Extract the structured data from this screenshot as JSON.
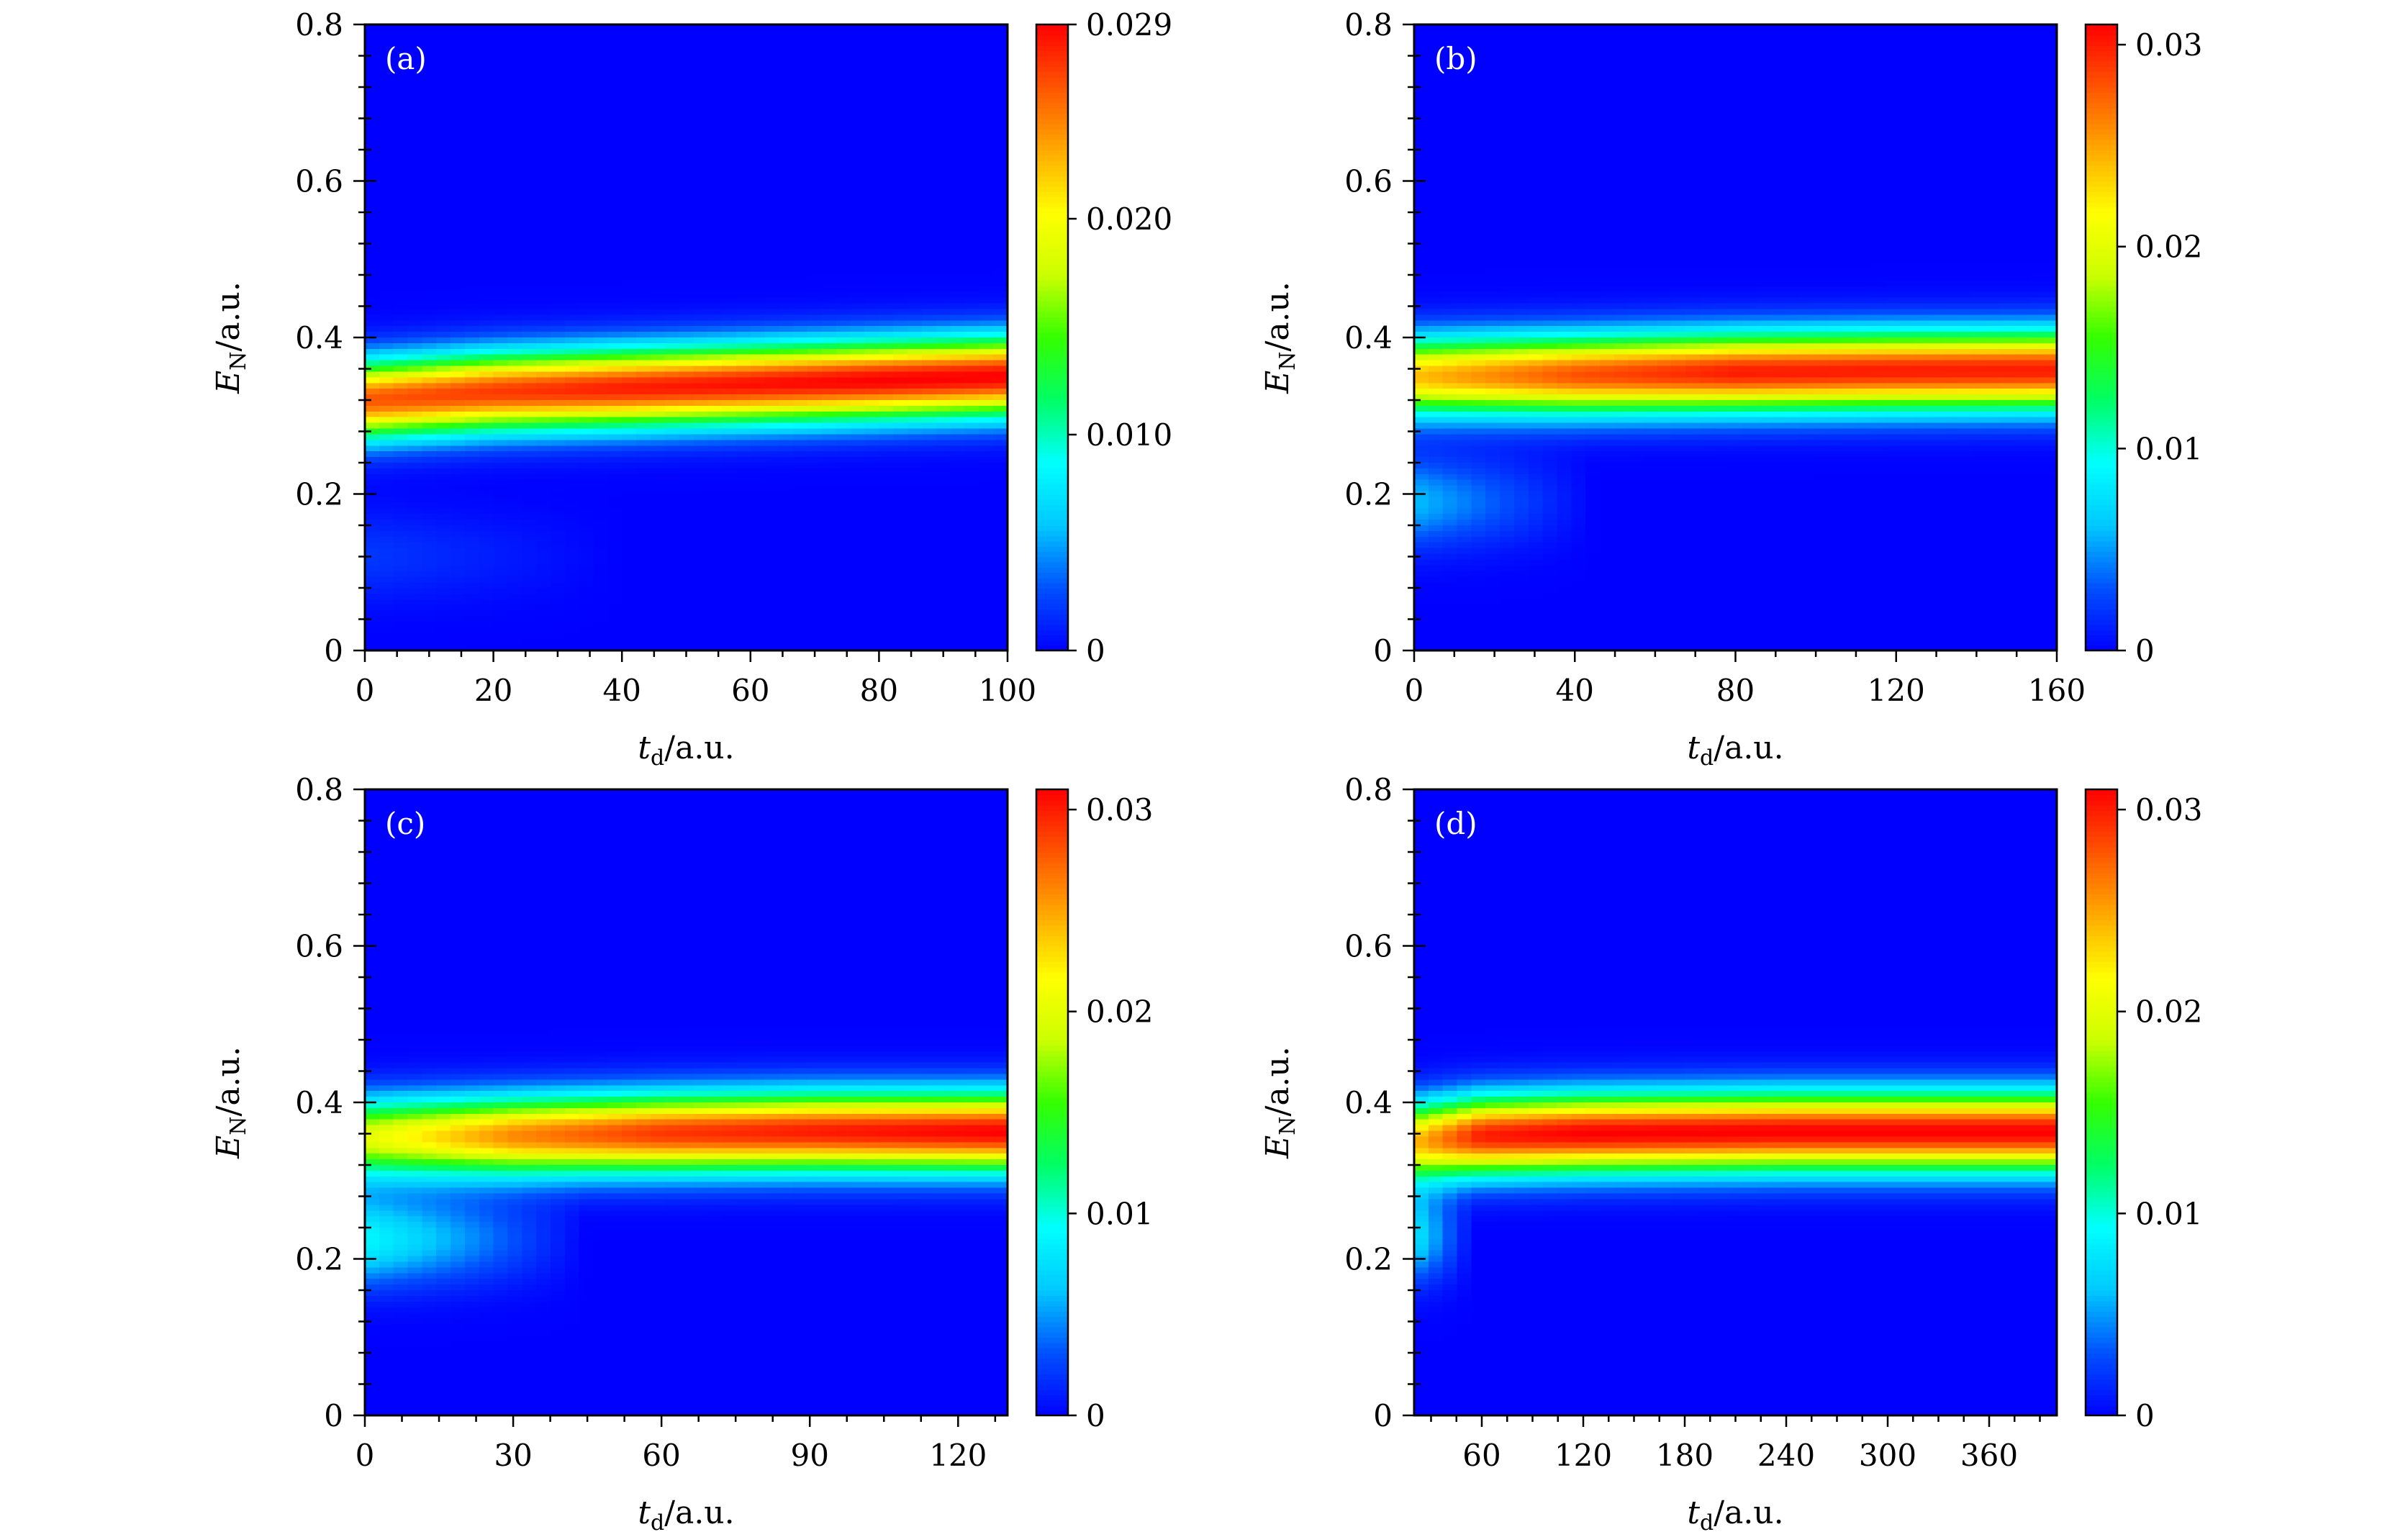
{
  "colorscale": [
    "#0000ff",
    "#0050ff",
    "#00c8ff",
    "#00ffff",
    "#00ff66",
    "#33ff00",
    "#ccff00",
    "#ffff00",
    "#ffaa00",
    "#ff5500",
    "#ff0000"
  ],
  "chart_data": [
    {
      "type": "heatmap",
      "label": "(a)",
      "xlabel": {
        "main": "t",
        "sub": "d",
        "unit": "/a.u."
      },
      "ylabel": {
        "main": "E",
        "sub": "N",
        "unit": "/a.u."
      },
      "xlim": [
        0,
        100
      ],
      "ylim": [
        0,
        0.8
      ],
      "xticks": [
        0,
        20,
        40,
        60,
        80,
        100
      ],
      "xticklabels": [
        "0",
        "20",
        "40",
        "60",
        "80",
        "100"
      ],
      "yticks": [
        0,
        0.2,
        0.4,
        0.6,
        0.8
      ],
      "yticklabels": [
        "0",
        "0.2",
        "0.4",
        "0.6",
        "0.8"
      ],
      "colorbar": {
        "min": 0,
        "max": 0.029,
        "ticks": [
          0,
          0.01,
          0.02,
          0.029
        ],
        "ticklabels": [
          "0",
          "0.010",
          "0.020",
          "0.029"
        ]
      },
      "band": {
        "x": [
          0,
          20,
          40,
          60,
          80,
          100
        ],
        "center": [
          0.32,
          0.33,
          0.335,
          0.34,
          0.345,
          0.35
        ],
        "peak": [
          0.026,
          0.027,
          0.028,
          0.0285,
          0.029,
          0.029
        ]
      },
      "secondary": {
        "x_end": 40,
        "center": 0.12,
        "peak": 0.002
      }
    },
    {
      "type": "heatmap",
      "label": "(b)",
      "xlabel": {
        "main": "t",
        "sub": "d",
        "unit": "/a.u."
      },
      "ylabel": {
        "main": "E",
        "sub": "N",
        "unit": "/a.u."
      },
      "xlim": [
        0,
        160
      ],
      "ylim": [
        0,
        0.8
      ],
      "xticks": [
        0,
        40,
        80,
        120,
        160
      ],
      "xticklabels": [
        "0",
        "40",
        "80",
        "120",
        "160"
      ],
      "yticks": [
        0,
        0.2,
        0.4,
        0.6,
        0.8
      ],
      "yticklabels": [
        "0",
        "0.2",
        "0.4",
        "0.6",
        "0.8"
      ],
      "colorbar": {
        "min": 0,
        "max": 0.031,
        "ticks": [
          0,
          0.01,
          0.02,
          0.03
        ],
        "ticklabels": [
          "0",
          "0.01",
          "0.02",
          "0.03"
        ]
      },
      "band": {
        "x": [
          0,
          40,
          80,
          120,
          160
        ],
        "center": [
          0.35,
          0.352,
          0.355,
          0.357,
          0.358
        ],
        "peak": [
          0.024,
          0.028,
          0.03,
          0.03,
          0.03
        ]
      },
      "secondary": {
        "x_end": 45,
        "center": 0.19,
        "peak": 0.006
      }
    },
    {
      "type": "heatmap",
      "label": "(c)",
      "xlabel": {
        "main": "t",
        "sub": "d",
        "unit": "/a.u."
      },
      "ylabel": {
        "main": "E",
        "sub": "N",
        "unit": "/a.u."
      },
      "xlim": [
        0,
        130
      ],
      "ylim": [
        0,
        0.8
      ],
      "xticks": [
        0,
        30,
        60,
        90,
        120
      ],
      "xticklabels": [
        "0",
        "30",
        "60",
        "90",
        "120"
      ],
      "yticks": [
        0,
        0.2,
        0.4,
        0.6,
        0.8
      ],
      "yticklabels": [
        "0",
        "0.2",
        "0.4",
        "0.6",
        "0.8"
      ],
      "colorbar": {
        "min": 0,
        "max": 0.031,
        "ticks": [
          0,
          0.01,
          0.02,
          0.03
        ],
        "ticklabels": [
          "0",
          "0.01",
          "0.02",
          "0.03"
        ]
      },
      "band": {
        "x": [
          0,
          30,
          60,
          90,
          130
        ],
        "center": [
          0.355,
          0.357,
          0.36,
          0.362,
          0.362
        ],
        "peak": [
          0.02,
          0.026,
          0.029,
          0.03,
          0.031
        ]
      },
      "secondary": {
        "x_end": 45,
        "center": 0.225,
        "peak": 0.009
      }
    },
    {
      "type": "heatmap",
      "label": "(d)",
      "xlabel": {
        "main": "t",
        "sub": "d",
        "unit": "/a.u."
      },
      "ylabel": {
        "main": "E",
        "sub": "N",
        "unit": "/a.u."
      },
      "xlim": [
        20,
        400
      ],
      "ylim": [
        0,
        0.8
      ],
      "xticks": [
        60,
        120,
        180,
        240,
        300,
        360
      ],
      "xticklabels": [
        "60",
        "120",
        "180",
        "240",
        "300",
        "360"
      ],
      "yticks": [
        0,
        0.2,
        0.4,
        0.6,
        0.8
      ],
      "yticklabels": [
        "0",
        "0.2",
        "0.4",
        "0.6",
        "0.8"
      ],
      "colorbar": {
        "min": 0,
        "max": 0.031,
        "ticks": [
          0,
          0.01,
          0.02,
          0.03
        ],
        "ticklabels": [
          "0",
          "0.01",
          "0.02",
          "0.03"
        ]
      },
      "band": {
        "x": [
          20,
          60,
          120,
          240,
          400
        ],
        "center": [
          0.35,
          0.357,
          0.36,
          0.362,
          0.362
        ],
        "peak": [
          0.024,
          0.03,
          0.031,
          0.031,
          0.031
        ]
      },
      "secondary": {
        "x_end": 55,
        "center": 0.23,
        "peak": 0.008
      }
    }
  ]
}
